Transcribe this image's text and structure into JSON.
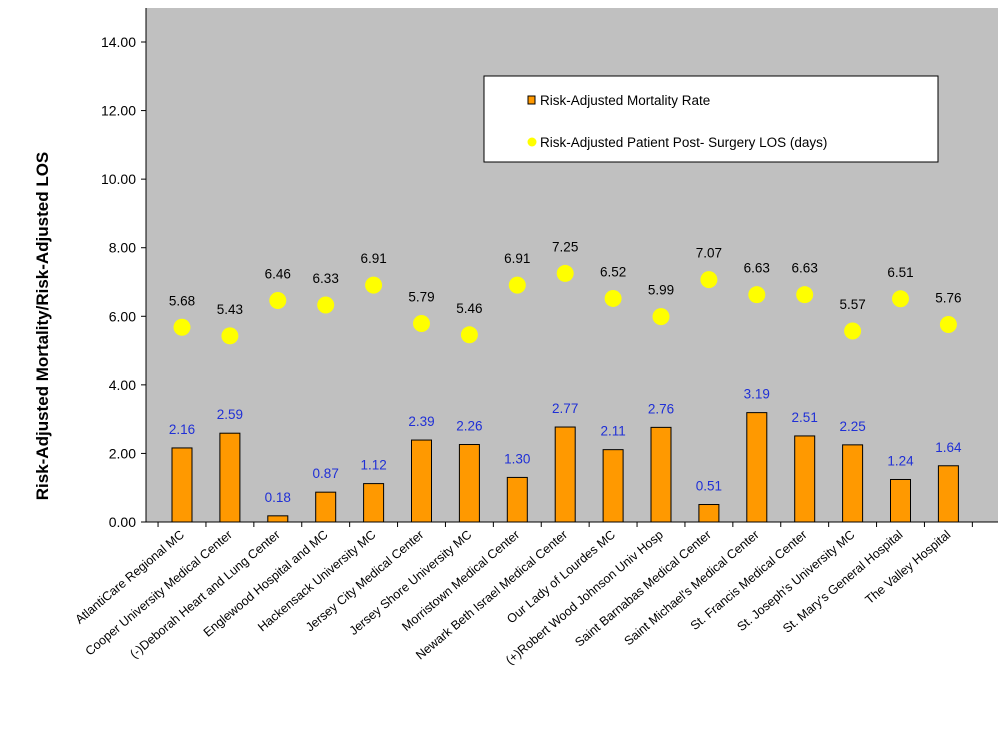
{
  "chart_data": {
    "type": "bar",
    "title": "",
    "xlabel": "",
    "ylabel": "Risk-Adjusted Mortality/Risk-Adjusted LOS",
    "ylim": [
      0,
      15
    ],
    "yticks": [
      "0.00",
      "2.00",
      "4.00",
      "6.00",
      "8.00",
      "10.00",
      "12.00",
      "14.00"
    ],
    "grid": false,
    "legend_position": "top-right",
    "categories": [
      "AtlantiCare Regional MC",
      "Cooper University Medical Center",
      "(-)Deborah Heart and Lung Center",
      "Englewood Hospital and MC",
      "Hackensack University MC",
      "Jersey City Medical Center",
      "Jersey Shore University MC",
      "Morristown Medical Center",
      "Newark Beth Israel Medical Center",
      "Our Lady of Lourdes MC",
      "(+)Robert Wood Johnson Univ Hosp",
      "Saint Barnabas Medical Center",
      "Saint Michael's Medical Center",
      "St. Francis Medical Center",
      "St. Joseph's University MC",
      "St. Mary's General Hospital",
      "The Valley Hospital"
    ],
    "series": [
      {
        "name": "Risk-Adjusted Mortality Rate",
        "kind": "bar",
        "color": "#FF9900",
        "values": [
          2.16,
          2.59,
          0.18,
          0.87,
          1.12,
          2.39,
          2.26,
          1.3,
          2.77,
          2.11,
          2.76,
          0.51,
          3.19,
          2.51,
          2.25,
          1.24,
          1.64
        ],
        "labels": [
          "2.16",
          "2.59",
          "0.18",
          "0.87",
          "1.12",
          "2.39",
          "2.26",
          "1.30",
          "2.77",
          "2.11",
          "2.76",
          "0.51",
          "3.19",
          "2.51",
          "2.25",
          "1.24",
          "1.64"
        ]
      },
      {
        "name": "Risk-Adjusted Patient Post- Surgery LOS (days)",
        "kind": "scatter",
        "color": "#FFFF00",
        "values": [
          5.68,
          5.43,
          6.46,
          6.33,
          6.91,
          5.79,
          5.46,
          6.91,
          7.25,
          6.52,
          5.99,
          7.07,
          6.63,
          6.63,
          5.57,
          6.51,
          5.76
        ],
        "labels": [
          "5.68",
          "5.43",
          "6.46",
          "6.33",
          "6.91",
          "5.79",
          "5.46",
          "6.91",
          "7.25",
          "6.52",
          "5.99",
          "7.07",
          "6.63",
          "6.63",
          "5.57",
          "6.51",
          "5.76"
        ]
      }
    ],
    "colors": {
      "plot_background": "#C0C0C0",
      "bar_label": "#1F2FD6",
      "bar_stroke": "#000000"
    }
  }
}
